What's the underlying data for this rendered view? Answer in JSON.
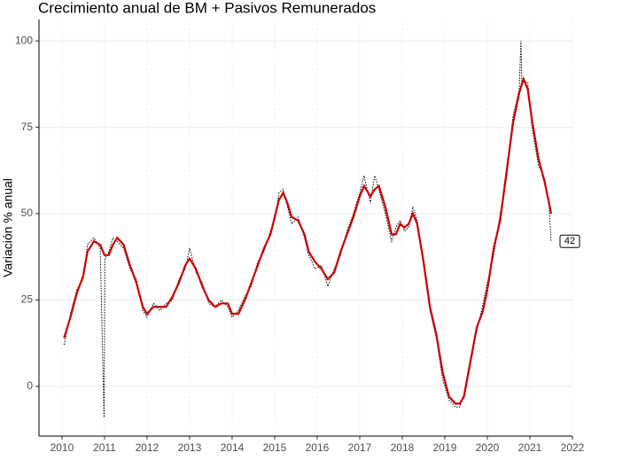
{
  "chart_data": {
    "type": "line",
    "title": "Crecimiento anual de BM + Pasivos Remunerados",
    "ylabel": "Variación % anual",
    "xlim": [
      2009.46,
      2022.0
    ],
    "ylim": [
      -14.4,
      106.2
    ],
    "xticks": [
      2010,
      2011,
      2012,
      2013,
      2014,
      2015,
      2016,
      2017,
      2018,
      2019,
      2020,
      2021,
      2022
    ],
    "yticks": [
      0,
      25,
      50,
      75,
      100
    ],
    "grid": true,
    "series": [
      {
        "color": "#000000",
        "style": "dotted",
        "x": [
          2010.05,
          2010.2,
          2010.35,
          2010.5,
          2010.6,
          2010.75,
          2010.9,
          2010.99,
          2011.01,
          2011.1,
          2011.2,
          2011.3,
          2011.45,
          2011.6,
          2011.75,
          2011.9,
          2012.0,
          2012.15,
          2012.3,
          2012.45,
          2012.6,
          2012.75,
          2012.9,
          2013.0,
          2013.15,
          2013.3,
          2013.45,
          2013.6,
          2013.75,
          2013.9,
          2014.0,
          2014.15,
          2014.3,
          2014.45,
          2014.6,
          2014.75,
          2014.9,
          2015.0,
          2015.1,
          2015.2,
          2015.3,
          2015.4,
          2015.55,
          2015.7,
          2015.8,
          2015.95,
          2016.1,
          2016.25,
          2016.4,
          2016.55,
          2016.7,
          2016.85,
          2017.0,
          2017.1,
          2017.25,
          2017.35,
          2017.45,
          2017.6,
          2017.75,
          2017.85,
          2017.95,
          2018.05,
          2018.15,
          2018.25,
          2018.35,
          2018.5,
          2018.65,
          2018.8,
          2018.95,
          2019.1,
          2019.25,
          2019.35,
          2019.45,
          2019.6,
          2019.75,
          2019.9,
          2020.0,
          2020.15,
          2020.3,
          2020.45,
          2020.6,
          2020.75,
          2020.79,
          2020.81,
          2020.95,
          2021.05,
          2021.2,
          2021.35,
          2021.45,
          2021.5
        ],
        "values": [
          12,
          21,
          28,
          31,
          41,
          43,
          40,
          -9,
          37,
          39,
          43,
          42,
          40,
          34,
          31,
          22,
          20,
          24,
          22,
          24,
          25,
          31,
          34,
          40,
          33,
          30,
          24,
          23,
          25,
          23,
          20,
          22,
          26,
          29,
          36,
          39,
          45,
          48,
          56,
          57,
          52,
          47,
          49,
          43,
          38,
          34,
          35,
          29,
          34,
          38,
          45,
          50,
          56,
          61,
          53,
          61,
          57,
          50,
          42,
          46,
          48,
          45,
          46,
          52,
          48,
          35,
          22,
          14,
          2,
          -4,
          -6,
          -6,
          -2,
          8,
          16,
          24,
          30,
          38,
          50,
          60,
          78,
          86,
          100,
          88,
          88,
          75,
          64,
          60,
          52,
          42
        ]
      },
      {
        "color": "#cc0000",
        "style": "solid",
        "x": [
          2010.05,
          2010.2,
          2010.35,
          2010.5,
          2010.6,
          2010.75,
          2010.9,
          2011.0,
          2011.1,
          2011.2,
          2011.3,
          2011.45,
          2011.6,
          2011.75,
          2011.9,
          2012.0,
          2012.15,
          2012.3,
          2012.45,
          2012.6,
          2012.75,
          2012.9,
          2013.0,
          2013.15,
          2013.3,
          2013.45,
          2013.6,
          2013.75,
          2013.9,
          2014.0,
          2014.15,
          2014.3,
          2014.45,
          2014.6,
          2014.75,
          2014.9,
          2015.0,
          2015.1,
          2015.2,
          2015.3,
          2015.4,
          2015.55,
          2015.7,
          2015.8,
          2015.95,
          2016.1,
          2016.25,
          2016.4,
          2016.55,
          2016.7,
          2016.85,
          2017.0,
          2017.1,
          2017.25,
          2017.35,
          2017.45,
          2017.6,
          2017.75,
          2017.85,
          2017.95,
          2018.05,
          2018.15,
          2018.25,
          2018.35,
          2018.5,
          2018.65,
          2018.8,
          2018.95,
          2019.1,
          2019.25,
          2019.35,
          2019.45,
          2019.6,
          2019.75,
          2019.9,
          2020.0,
          2020.15,
          2020.3,
          2020.45,
          2020.6,
          2020.75,
          2020.85,
          2020.95,
          2021.05,
          2021.2,
          2021.35,
          2021.45,
          2021.5
        ],
        "values": [
          14,
          20,
          27,
          32,
          39,
          42,
          41,
          38,
          38,
          41,
          43,
          41,
          35,
          30,
          23,
          21,
          23,
          23,
          23,
          26,
          30,
          35,
          37,
          34,
          29,
          25,
          23,
          24,
          24,
          21,
          21,
          25,
          30,
          35,
          40,
          44,
          49,
          54,
          56,
          53,
          49,
          48,
          44,
          39,
          36,
          34,
          31,
          33,
          39,
          44,
          49,
          55,
          58,
          55,
          57,
          58,
          52,
          44,
          44,
          47,
          46,
          47,
          50,
          47,
          36,
          23,
          15,
          4,
          -3,
          -5,
          -5,
          -3,
          7,
          17,
          22,
          28,
          40,
          48,
          62,
          76,
          85,
          89,
          86,
          77,
          66,
          59,
          53,
          50
        ]
      }
    ]
  }
}
